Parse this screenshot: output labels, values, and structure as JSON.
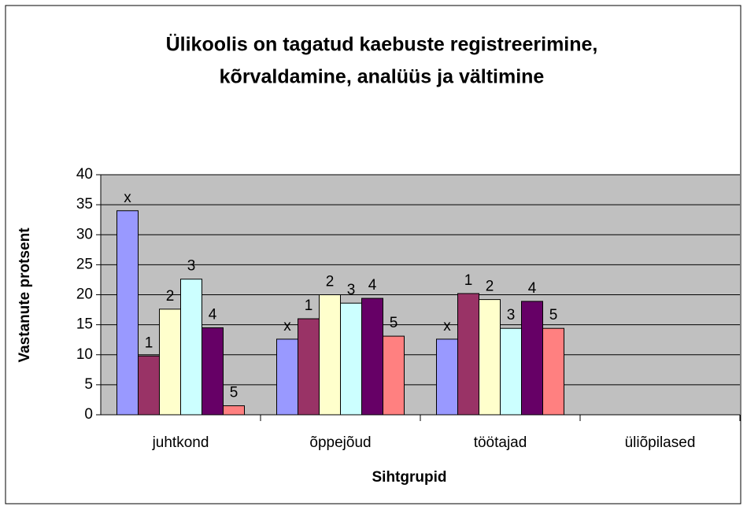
{
  "chart_data": {
    "type": "bar",
    "title": [
      "Ülikoolis on tagatud kaebuste registreerimine,",
      "kõrvaldamine, analüüs ja vältimine"
    ],
    "x_label": "Sihtgrupid",
    "y_label": "Vastanute protsent",
    "categories": [
      "juhtkond",
      "õppejõud",
      "töötajad",
      "üliõpilased"
    ],
    "series": [
      {
        "name": "x",
        "color": "#9999ff",
        "values": [
          34,
          12.6,
          12.6,
          null
        ],
        "value_labels": [
          "x",
          "x",
          "x",
          null
        ]
      },
      {
        "name": "1",
        "color": "#993366",
        "values": [
          9.8,
          16,
          20.2,
          null
        ],
        "value_labels": [
          "1",
          "1",
          "1",
          null
        ]
      },
      {
        "name": "2",
        "color": "#ffffcc",
        "values": [
          17.6,
          20,
          19.2,
          null
        ],
        "value_labels": [
          "2",
          "2",
          "2",
          null
        ]
      },
      {
        "name": "3",
        "color": "#ccffff",
        "values": [
          22.6,
          18.6,
          14.4,
          null
        ],
        "value_labels": [
          "3",
          "3",
          "3",
          null
        ]
      },
      {
        "name": "4",
        "color": "#660066",
        "values": [
          14.5,
          19.4,
          18.9,
          null
        ],
        "value_labels": [
          "4",
          "4",
          "4",
          null
        ]
      },
      {
        "name": "5",
        "color": "#ff8080",
        "values": [
          1.5,
          13.1,
          14.4,
          null
        ],
        "value_labels": [
          "5",
          "5",
          "5",
          null
        ]
      }
    ],
    "ylim": [
      0,
      40
    ],
    "yticks": [
      0,
      5,
      10,
      15,
      20,
      25,
      30,
      35,
      40
    ],
    "grid": true,
    "plot_background": "#c0c0c0"
  }
}
